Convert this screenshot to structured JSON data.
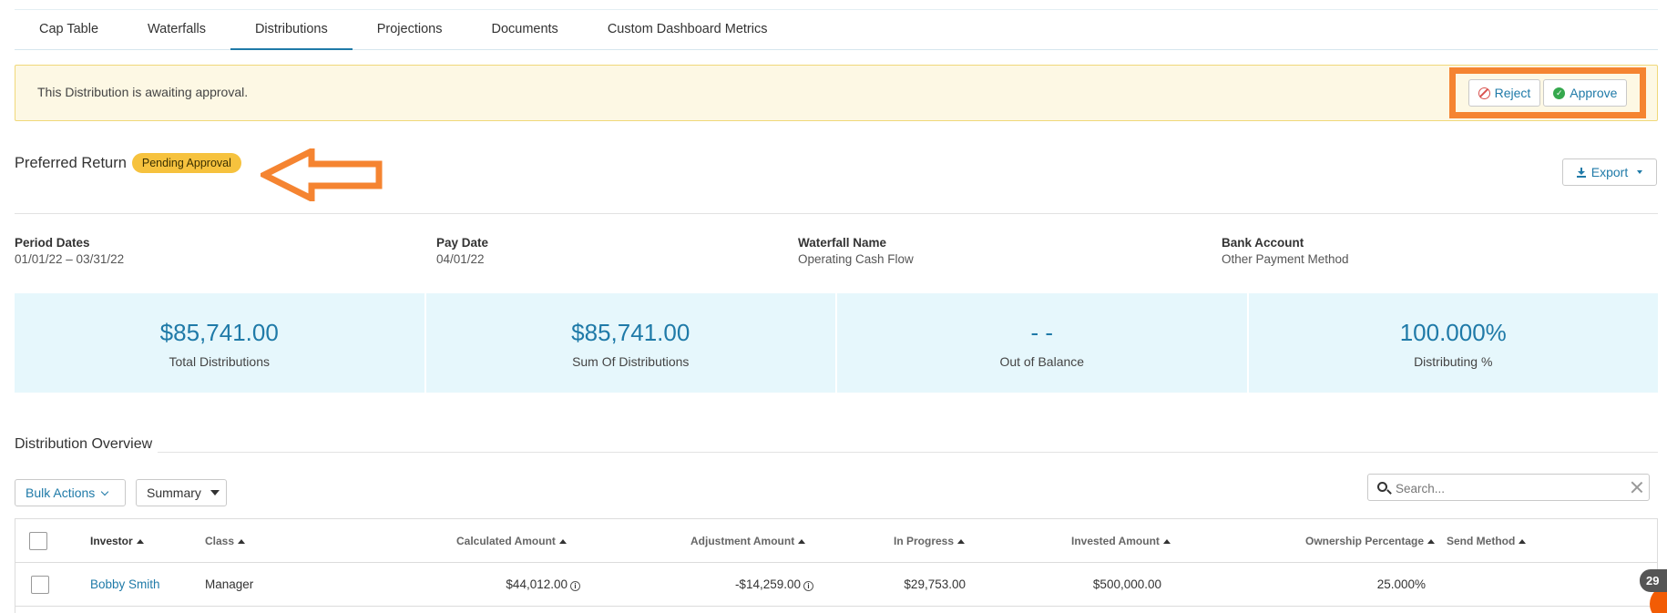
{
  "tabs": [
    {
      "label": "Cap Table"
    },
    {
      "label": "Waterfalls"
    },
    {
      "label": "Distributions"
    },
    {
      "label": "Projections"
    },
    {
      "label": "Documents"
    },
    {
      "label": "Custom Dashboard Metrics"
    }
  ],
  "active_tab": "Distributions",
  "banner": {
    "message": "This Distribution is awaiting approval.",
    "reject_label": "Reject",
    "approve_label": "Approve"
  },
  "distribution": {
    "title": "Preferred Return",
    "status": "Pending Approval",
    "export_label": "Export"
  },
  "meta": [
    {
      "label": "Period Dates",
      "value": "01/01/22 – 03/31/22"
    },
    {
      "label": "Pay Date",
      "value": "04/01/22"
    },
    {
      "label": "Waterfall Name",
      "value": "Operating Cash Flow"
    },
    {
      "label": "Bank Account",
      "value": "Other Payment Method"
    }
  ],
  "stats": [
    {
      "value": "$85,741.00",
      "label": "Total Distributions"
    },
    {
      "value": "$85,741.00",
      "label": "Sum Of Distributions"
    },
    {
      "value": "- -",
      "label": "Out of Balance"
    },
    {
      "value": "100.000%",
      "label": "Distributing %"
    }
  ],
  "overview": {
    "title": "Distribution Overview",
    "bulk_actions": "Bulk Actions",
    "summary": "Summary",
    "search_placeholder": "Search..."
  },
  "table": {
    "headers": {
      "investor": "Investor",
      "class": "Class",
      "calculated": "Calculated Amount",
      "adjustment": "Adjustment Amount",
      "in_progress": "In Progress",
      "invested": "Invested Amount",
      "ownership": "Ownership Percentage",
      "send_method": "Send Method"
    },
    "rows": [
      {
        "investor": "Bobby Smith",
        "class": "Manager",
        "calculated": "$44,012.00",
        "adjustment": "-$14,259.00",
        "in_progress": "$29,753.00",
        "invested": "$500,000.00",
        "ownership": "25.000%",
        "send_method": ""
      }
    ]
  },
  "notification_count": "29",
  "colors": {
    "accent": "#1f7aa8",
    "banner_bg": "#fdf8e4",
    "badge": "#f6c23e",
    "highlight": "#f58431",
    "stats_bg": "#e6f7fc"
  }
}
